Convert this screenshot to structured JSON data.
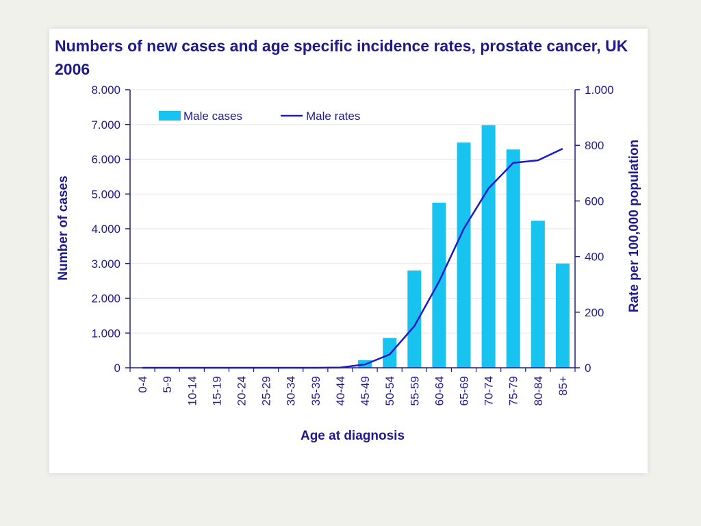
{
  "chart_data": {
    "type": "bar+line",
    "title": "Numbers of new cases and age specific incidence rates,  prostate cancer, UK 2006",
    "xlabel": "Age at diagnosis",
    "ylabel_left": "Number of cases",
    "ylabel_right": "Rate per 100,000 population",
    "categories": [
      "0-4",
      "5-9",
      "10-14",
      "15-19",
      "20-24",
      "25-29",
      "30-34",
      "35-39",
      "40-44",
      "45-49",
      "50-54",
      "55-59",
      "60-64",
      "65-69",
      "70-74",
      "75-79",
      "80-84",
      "85+"
    ],
    "left_axis": {
      "ylim": [
        0,
        8000
      ],
      "ticks": [
        0,
        1000,
        2000,
        3000,
        4000,
        5000,
        6000,
        7000,
        8000
      ],
      "tick_labels": [
        "0",
        "1.000",
        "2.000",
        "3.000",
        "4.000",
        "5.000",
        "6.000",
        "7.000",
        "8.000"
      ]
    },
    "right_axis": {
      "ylim": [
        0,
        1000
      ],
      "ticks": [
        0,
        200,
        400,
        600,
        800,
        1000
      ],
      "tick_labels": [
        "0",
        "200",
        "400",
        "600",
        "800",
        "1.000"
      ]
    },
    "series": [
      {
        "name": "Male cases",
        "type": "bar",
        "axis": "left",
        "color": "#19c3f0",
        "values": [
          0,
          0,
          0,
          0,
          0,
          0,
          0,
          0,
          30,
          220,
          860,
          2800,
          4750,
          6480,
          6980,
          6280,
          4230,
          3000
        ]
      },
      {
        "name": "Male rates",
        "type": "line",
        "axis": "right",
        "color": "#1a1ac8",
        "values": [
          0,
          0,
          0,
          0,
          0,
          0,
          0,
          0,
          1,
          12,
          48,
          150,
          310,
          500,
          645,
          737,
          746,
          788
        ]
      }
    ],
    "legend": {
      "position": "top-left",
      "entries": [
        "Male cases",
        "Male rates"
      ]
    },
    "grid": true
  }
}
